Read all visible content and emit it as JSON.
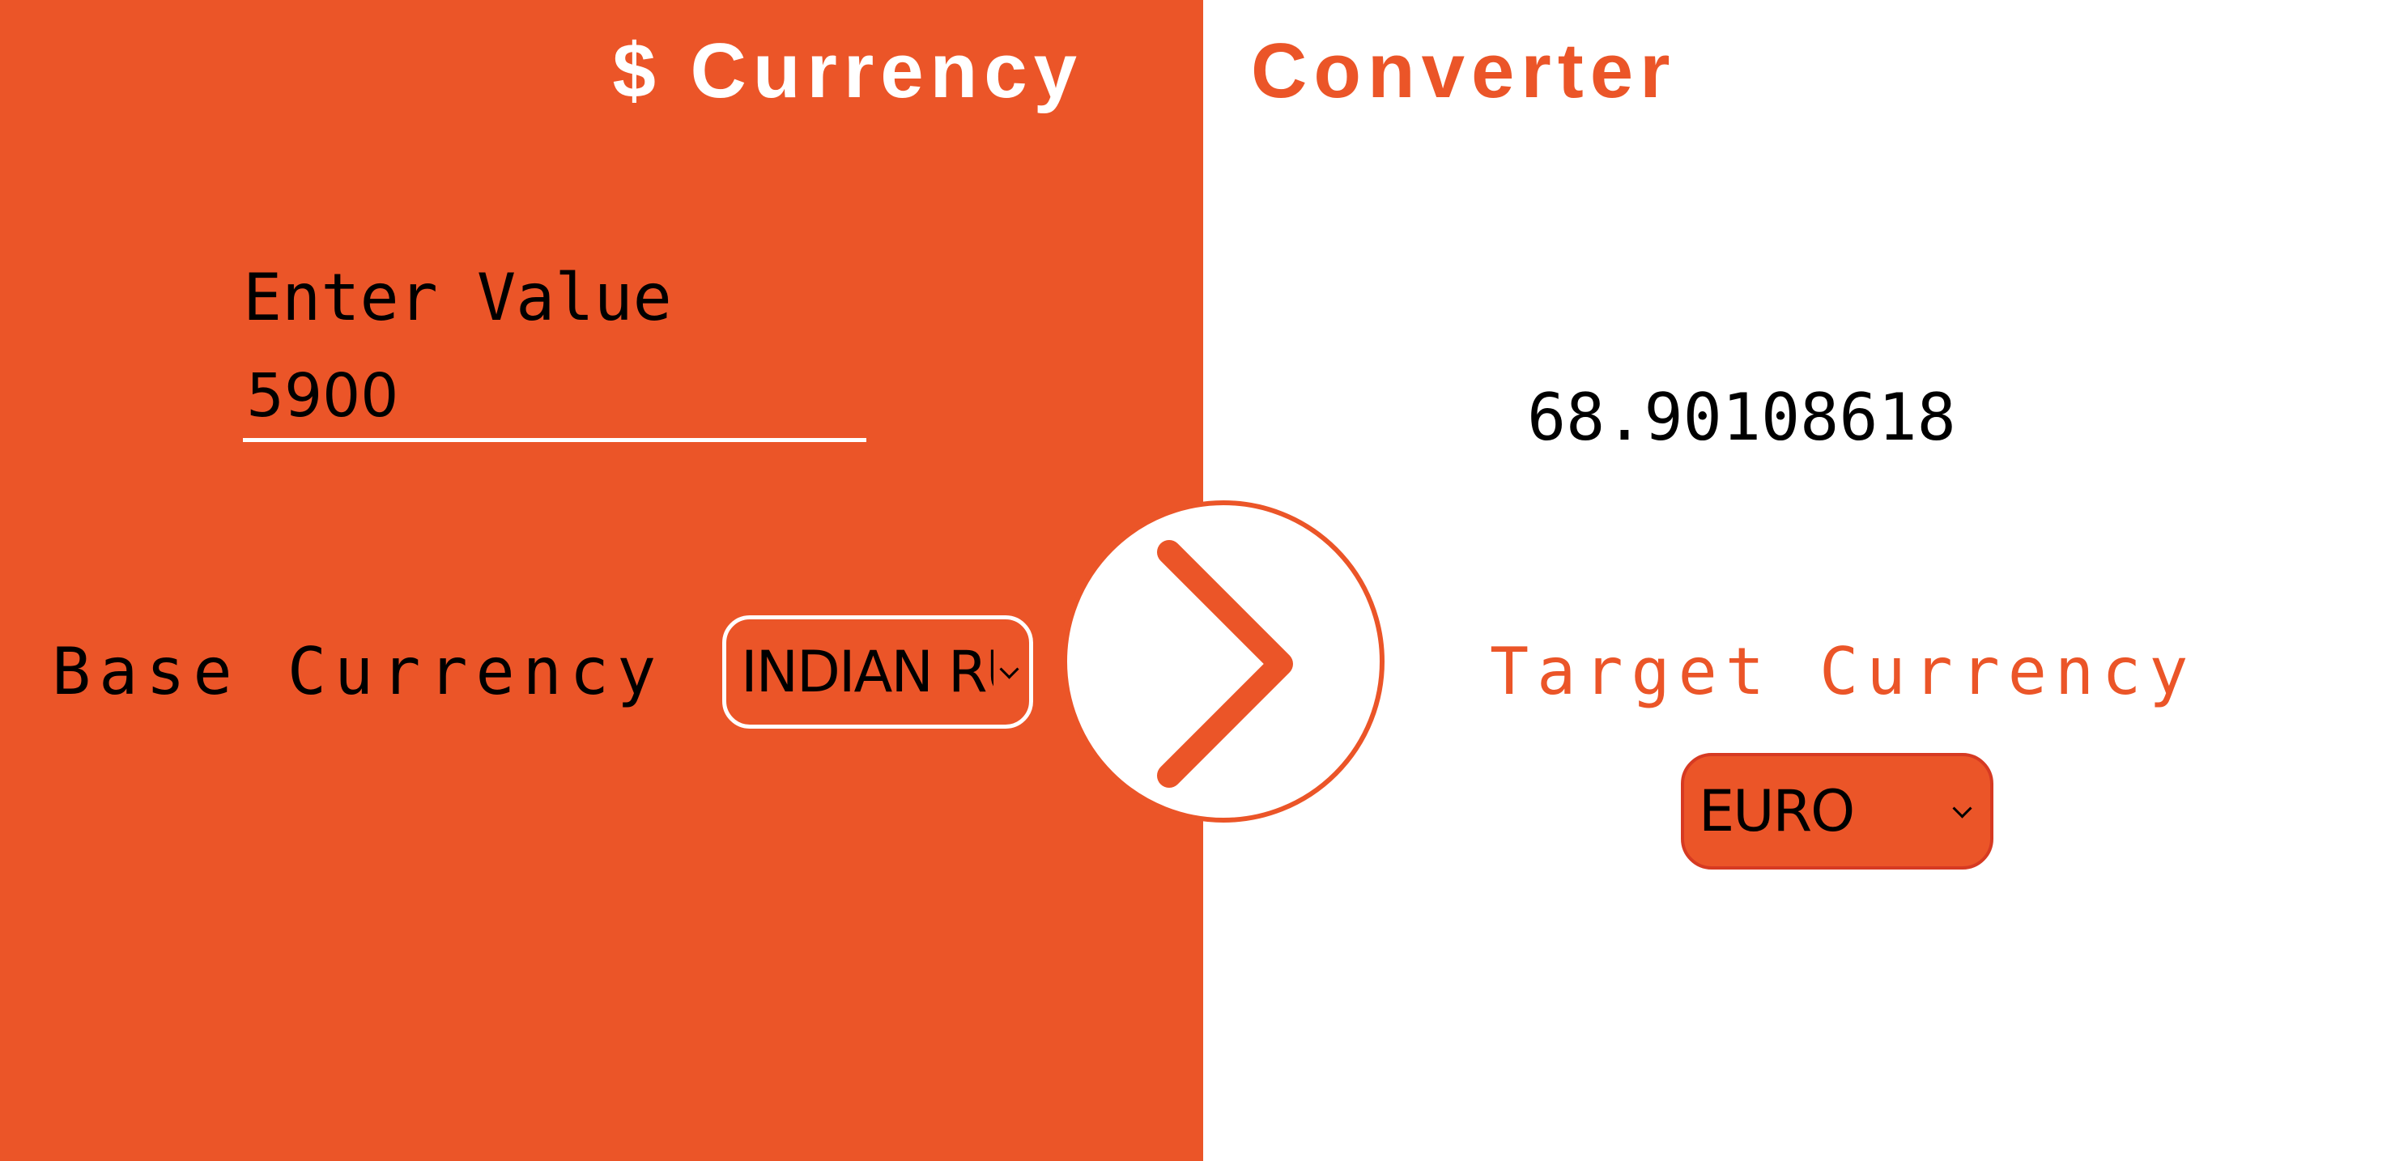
{
  "title": {
    "part1": "$ Currency",
    "part2": "Converter"
  },
  "input": {
    "label": "Enter Value",
    "value": "5900"
  },
  "base": {
    "label": "Base Currency",
    "selected": "INDIAN RUPEE"
  },
  "result": {
    "value": "68.90108618"
  },
  "target": {
    "label": "Target Currency",
    "selected": "EURO"
  },
  "colors": {
    "accent": "#EB5528",
    "background": "#FFFFFF",
    "text": "#000000"
  },
  "icons": {
    "convert": "chevron-right-icon",
    "dropdown": "chevron-down-icon"
  }
}
